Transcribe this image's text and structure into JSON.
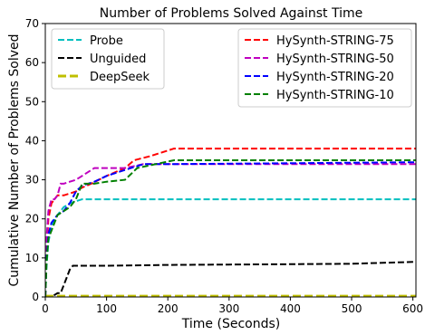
{
  "chart_data": {
    "type": "line",
    "title": "Number of Problems Solved Against Time",
    "xlabel": "Time (Seconds)",
    "ylabel": "Cumulative Number of Problems Solved",
    "xlim": [
      0,
      605
    ],
    "ylim": [
      0,
      70
    ],
    "xticks": [
      0,
      100,
      200,
      300,
      400,
      500,
      600
    ],
    "yticks": [
      0,
      10,
      20,
      30,
      40,
      50,
      60,
      70
    ],
    "grid": false,
    "legends": [
      {
        "placement": "upper-left",
        "series": [
          "Probe",
          "Unguided",
          "DeepSeek"
        ]
      },
      {
        "placement": "upper-right",
        "series": [
          "HySynth-STRING-75",
          "HySynth-STRING-50",
          "HySynth-STRING-20",
          "HySynth-STRING-10"
        ]
      }
    ],
    "series": [
      {
        "name": "Probe",
        "color": "#00bfbf",
        "x": [
          0,
          2,
          5,
          10,
          15,
          20,
          30,
          40,
          50,
          60,
          80,
          100,
          200,
          400,
          605
        ],
        "y": [
          0,
          8,
          14,
          18,
          20,
          21,
          23,
          24,
          24.5,
          25,
          25,
          25,
          25,
          25,
          25
        ]
      },
      {
        "name": "Unguided",
        "color": "#000000",
        "x": [
          0,
          10,
          20,
          25,
          30,
          35,
          40,
          45,
          100,
          200,
          300,
          400,
          500,
          605
        ],
        "y": [
          0,
          0,
          1,
          1,
          3,
          5,
          7,
          8,
          8,
          8.2,
          8.3,
          8.4,
          8.5,
          9
        ]
      },
      {
        "name": "DeepSeek",
        "color": "#bfbf00",
        "x": [
          0,
          605
        ],
        "y": [
          0.2,
          0.2
        ]
      },
      {
        "name": "HySynth-STRING-75",
        "color": "#ff0000",
        "x": [
          0,
          2,
          5,
          10,
          15,
          20,
          30,
          40,
          50,
          60,
          75,
          100,
          130,
          145,
          170,
          190,
          210,
          250,
          605
        ],
        "y": [
          0,
          12,
          20,
          24,
          25,
          26,
          26,
          26.5,
          27,
          28,
          29,
          31,
          33,
          35,
          36,
          37,
          38,
          38,
          38
        ]
      },
      {
        "name": "HySynth-STRING-50",
        "color": "#bf00bf",
        "x": [
          0,
          2,
          5,
          10,
          15,
          20,
          25,
          30,
          40,
          50,
          60,
          80,
          100,
          130,
          160,
          200,
          605
        ],
        "y": [
          0,
          15,
          22,
          25,
          25,
          26,
          29,
          29,
          29.5,
          30,
          31,
          33,
          33,
          33,
          34,
          34,
          34
        ]
      },
      {
        "name": "HySynth-STRING-20",
        "color": "#0000ff",
        "x": [
          0,
          2,
          5,
          10,
          20,
          30,
          40,
          50,
          60,
          80,
          100,
          120,
          140,
          160,
          200,
          605
        ],
        "y": [
          0,
          10,
          16,
          19,
          21,
          22,
          24,
          27,
          28.5,
          29.5,
          31,
          32,
          33,
          34,
          34,
          34.5
        ]
      },
      {
        "name": "HySynth-STRING-10",
        "color": "#008000",
        "x": [
          0,
          2,
          5,
          10,
          20,
          30,
          40,
          50,
          60,
          80,
          100,
          130,
          150,
          180,
          210,
          605
        ],
        "y": [
          0,
          9,
          15,
          17,
          21,
          22,
          23,
          25,
          29,
          29,
          29.5,
          30,
          33,
          34,
          35,
          35
        ]
      }
    ]
  }
}
